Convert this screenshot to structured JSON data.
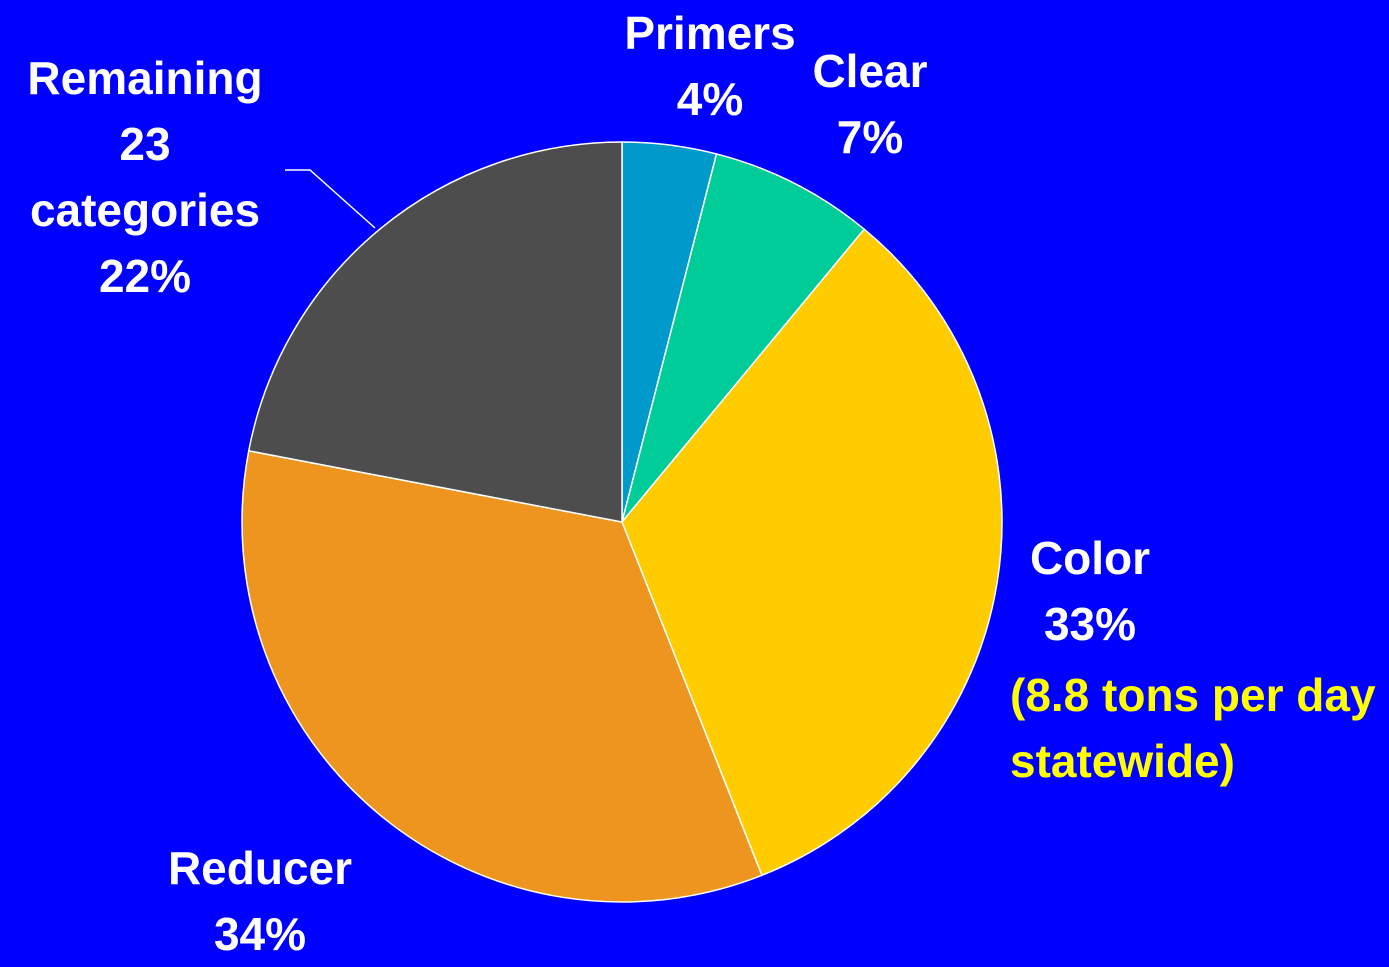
{
  "chart_data": {
    "type": "pie",
    "categories": [
      "Primers",
      "Clear",
      "Color",
      "Reducer",
      "Remaining 23 categories"
    ],
    "values": [
      4,
      7,
      33,
      34,
      22
    ],
    "value_labels": [
      "4%",
      "7%",
      "33%",
      "34%",
      "22%"
    ],
    "colors": [
      "#0099cc",
      "#00cc99",
      "#ffcc00",
      "#ee9520",
      "#4d4d4d"
    ],
    "annotation": "(8.8 tons per day statewide)",
    "annotation_color": "#ffff00"
  }
}
